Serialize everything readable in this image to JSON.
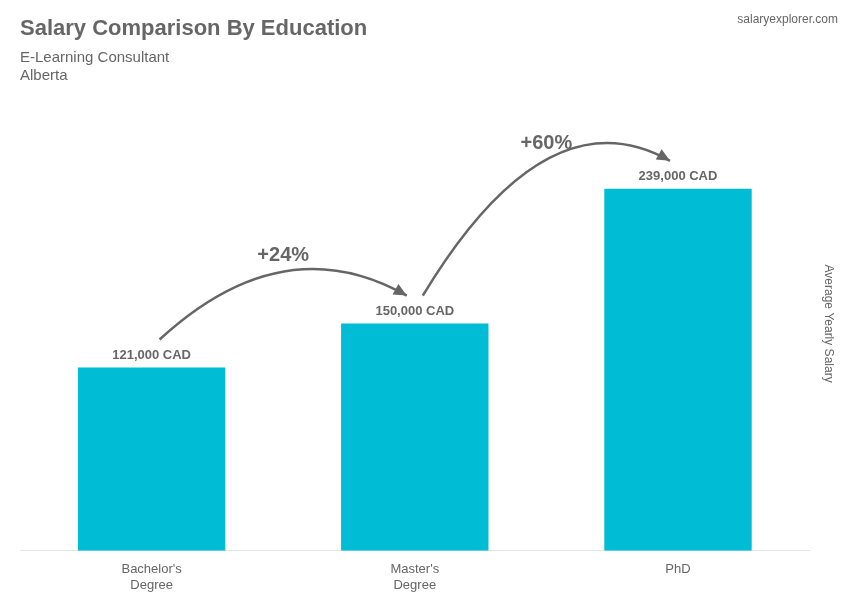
{
  "chart_data": {
    "type": "bar",
    "title": "Salary Comparison By Education",
    "subtitle": [
      "E-Learning Consultant",
      "Alberta"
    ],
    "ylabel": "Average Yearly Salary",
    "categories": [
      "Bachelor's\nDegree",
      "Master's\nDegree",
      "PhD"
    ],
    "values": [
      121000,
      150000,
      239000
    ],
    "value_labels": [
      "121,000 CAD",
      "150,000 CAD",
      "239,000 CAD"
    ],
    "data_labels": true,
    "color": "#00bcd4",
    "ylim": [
      0,
      300000
    ],
    "grid": false,
    "tick_labels": "x",
    "annotations": [
      {
        "text": "+24%",
        "from": 0,
        "to": 1
      },
      {
        "text": "+60%",
        "from": 1,
        "to": 2
      },
      {
        "text": "salaryexplorer.com"
      }
    ]
  }
}
